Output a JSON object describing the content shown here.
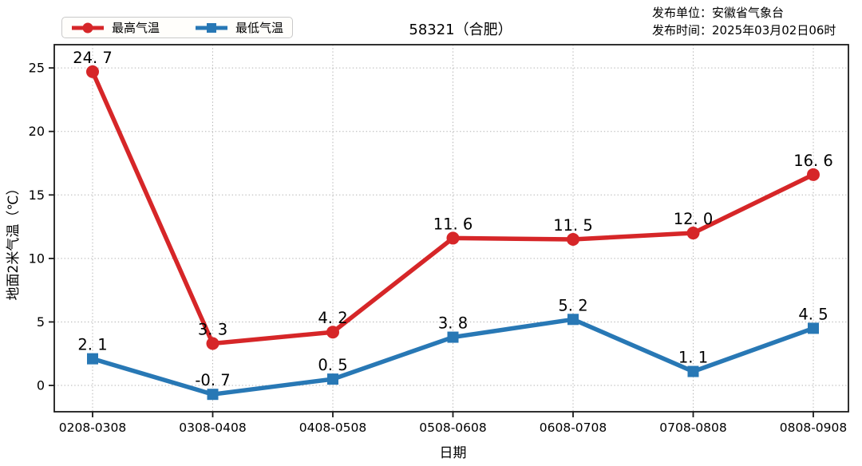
{
  "header": {
    "title": "58321（合肥）",
    "publish_unit": "发布单位：安徽省气象台",
    "publish_time": "发布时间：2025年03月02日06时"
  },
  "legend": {
    "max_label": "最高气温",
    "min_label": "最低气温"
  },
  "colors": {
    "max": "#d62628",
    "min": "#2878b5",
    "grid": "#b3b3b3",
    "axis": "#1a1a1a",
    "label": "#000000"
  },
  "chart_data": {
    "type": "line",
    "title": "58321（合肥）",
    "categories": [
      "0208-0308",
      "0308-0408",
      "0408-0508",
      "0508-0608",
      "0608-0708",
      "0708-0808",
      "0808-0908"
    ],
    "series": [
      {
        "name": "最高气温",
        "color": "#d62628",
        "marker": "circle",
        "values": [
          24.7,
          3.3,
          4.2,
          11.6,
          11.5,
          12.0,
          16.6
        ]
      },
      {
        "name": "最低气温",
        "color": "#2878b5",
        "marker": "square",
        "values": [
          2.1,
          -0.7,
          0.5,
          3.8,
          5.2,
          1.1,
          4.5
        ]
      }
    ],
    "xlabel": "日期",
    "ylabel": "地面2米气温（℃）",
    "yticks": [
      0,
      5,
      10,
      15,
      20,
      25
    ],
    "ylim": [
      -2.07,
      26.83
    ],
    "grid": true,
    "grid_style": "dotted",
    "legend_position": "top-left"
  }
}
